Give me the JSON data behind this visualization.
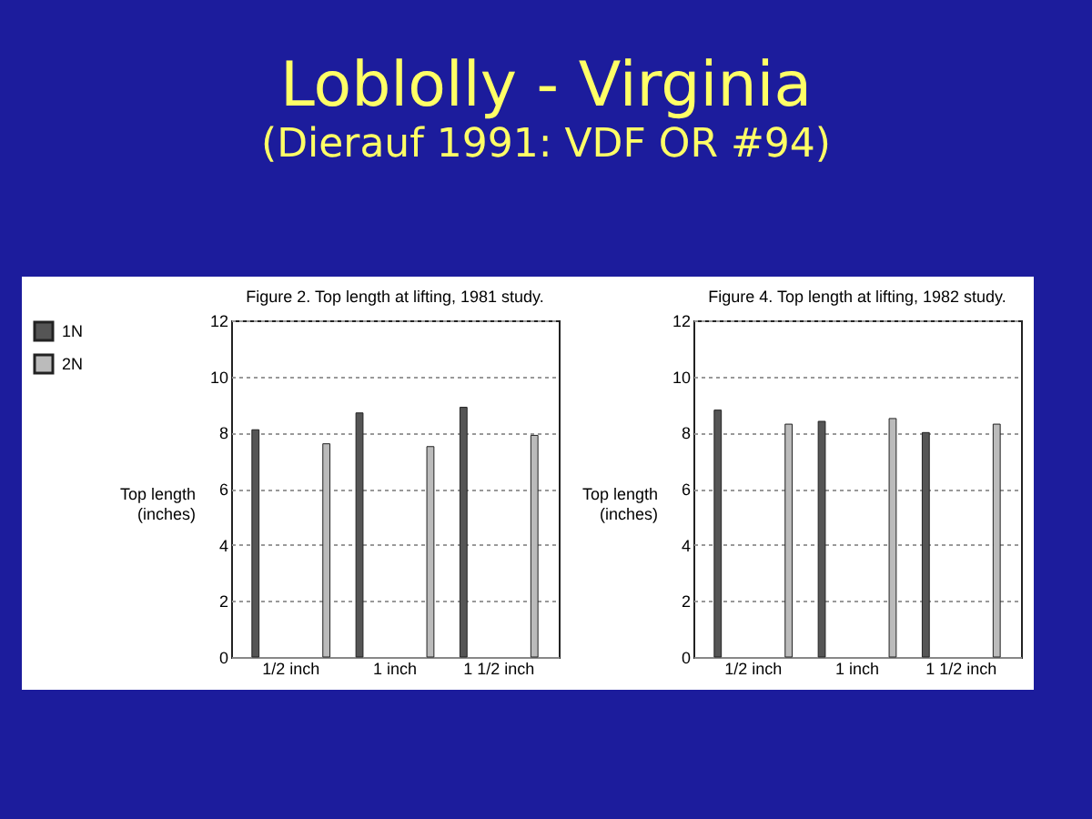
{
  "chart_data": [
    {
      "type": "other",
      "title": "Loblolly - Virginia",
      "subtitle": "(Dierauf 1991: VDF OR #94)"
    },
    {
      "type": "bar",
      "title": "Figure 2.  Top length at lifting, 1981 study.",
      "ylabel": "Top length (inches)",
      "categories": [
        "1/2 inch",
        "1 inch",
        "1 1/2 inch"
      ],
      "series": [
        {
          "name": "1N",
          "color": "#555555",
          "values": [
            8.1,
            8.7,
            8.9
          ]
        },
        {
          "name": "2N",
          "color": "#bbbbbb",
          "values": [
            7.6,
            7.5,
            7.9
          ]
        }
      ],
      "ylim": [
        0,
        12
      ],
      "yticks": [
        0,
        2,
        4,
        6,
        8,
        10,
        12
      ],
      "grid": "y",
      "legend": "top left"
    },
    {
      "type": "bar",
      "title": "Figure 4.  Top length at lifting, 1982 study.",
      "ylabel": "Top length (inches)",
      "categories": [
        "1/2 inch",
        "1 inch",
        "1 1/2 inch"
      ],
      "series": [
        {
          "name": "1N",
          "color": "#555555",
          "values": [
            8.8,
            8.4,
            8.0
          ]
        },
        {
          "name": "2N",
          "color": "#bbbbbb",
          "values": [
            8.3,
            8.5,
            8.3
          ]
        }
      ],
      "ylim": [
        0,
        12
      ],
      "yticks": [
        0,
        2,
        4,
        6,
        8,
        10,
        12
      ],
      "grid": "y",
      "legend": "top left"
    }
  ]
}
